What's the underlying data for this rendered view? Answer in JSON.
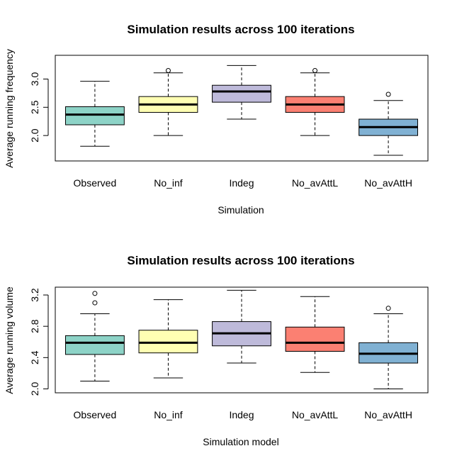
{
  "colors": [
    "#8dd3c7",
    "#ffffb3",
    "#bebada",
    "#fb8072",
    "#80b1d3"
  ],
  "chart_data": [
    {
      "type": "box",
      "title": "Simulation results across 100 iterations",
      "xlabel": "Simulation",
      "ylabel": "Average running frequency",
      "categories": [
        "Observed",
        "No_inf",
        "Indeg",
        "No_avAttL",
        "No_avAttH"
      ],
      "ylim": [
        1.55,
        3.42
      ],
      "yticks": [
        "2.0",
        "2.5",
        "3.0"
      ],
      "boxes": [
        {
          "min": 1.81,
          "q1": 2.19,
          "median": 2.37,
          "q3": 2.51,
          "max": 2.96,
          "outliers": []
        },
        {
          "min": 2.0,
          "q1": 2.41,
          "median": 2.55,
          "q3": 2.69,
          "max": 3.11,
          "outliers": [
            3.15
          ]
        },
        {
          "min": 2.29,
          "q1": 2.59,
          "median": 2.78,
          "q3": 2.89,
          "max": 3.24,
          "outliers": []
        },
        {
          "min": 2.0,
          "q1": 2.41,
          "median": 2.55,
          "q3": 2.69,
          "max": 3.11,
          "outliers": [
            3.15
          ]
        },
        {
          "min": 1.65,
          "q1": 2.0,
          "median": 2.15,
          "q3": 2.29,
          "max": 2.62,
          "outliers": [
            2.73
          ]
        }
      ]
    },
    {
      "type": "box",
      "title": "Simulation results across 100 iterations",
      "xlabel": "Simulation model",
      "ylabel": "Average running volume",
      "categories": [
        "Observed",
        "No_inf",
        "Indeg",
        "No_avAttL",
        "No_avAttH"
      ],
      "ylim": [
        1.95,
        3.3
      ],
      "yticks": [
        "2.0",
        "2.4",
        "2.8",
        "3.2"
      ],
      "boxes": [
        {
          "min": 2.1,
          "q1": 2.44,
          "median": 2.59,
          "q3": 2.68,
          "max": 2.96,
          "outliers": [
            3.1,
            3.22
          ]
        },
        {
          "min": 2.14,
          "q1": 2.46,
          "median": 2.59,
          "q3": 2.75,
          "max": 3.14,
          "outliers": []
        },
        {
          "min": 2.33,
          "q1": 2.55,
          "median": 2.71,
          "q3": 2.86,
          "max": 3.26,
          "outliers": []
        },
        {
          "min": 2.21,
          "q1": 2.48,
          "median": 2.59,
          "q3": 2.79,
          "max": 3.18,
          "outliers": []
        },
        {
          "min": 2.0,
          "q1": 2.33,
          "median": 2.45,
          "q3": 2.59,
          "max": 2.96,
          "outliers": [
            3.03
          ]
        }
      ]
    }
  ]
}
